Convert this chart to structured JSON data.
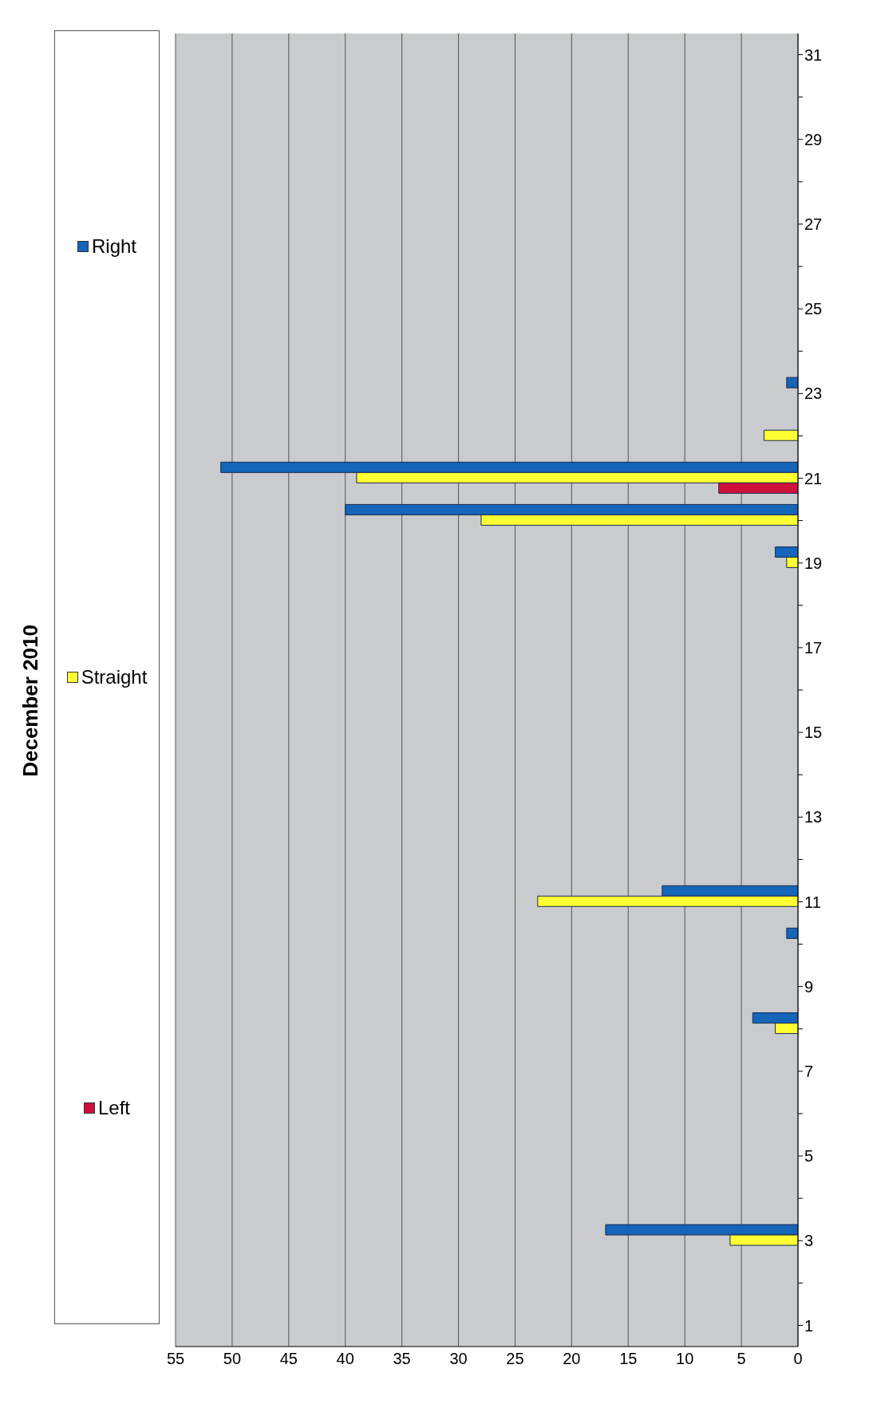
{
  "chart_data": {
    "type": "bar",
    "orientation": "horizontal",
    "title": "December 2010",
    "categories": [
      "31",
      null,
      "29",
      null,
      "27",
      null,
      "25",
      null,
      "23",
      null,
      "21",
      null,
      "19",
      null,
      "17",
      null,
      "15",
      null,
      "13",
      null,
      "11",
      null,
      "9",
      null,
      "7",
      null,
      "5",
      null,
      "3",
      null,
      "1"
    ],
    "series": [
      {
        "name": "Left",
        "color": "#d0103a",
        "values": [
          0,
          0,
          0,
          0,
          0,
          0,
          0,
          0,
          0,
          0,
          7,
          0,
          0,
          0,
          0,
          0,
          0,
          0,
          0,
          0,
          0,
          0,
          0,
          0,
          0,
          0,
          0,
          0,
          0,
          0,
          0
        ]
      },
      {
        "name": "Straight",
        "color": "#ffff33",
        "values": [
          0,
          0,
          0,
          0,
          0,
          0,
          0,
          0,
          0,
          3,
          39,
          28,
          1,
          0,
          0,
          0,
          0,
          0,
          0,
          0,
          23,
          0,
          0,
          2,
          0,
          0,
          0,
          0,
          6,
          0,
          0
        ]
      },
      {
        "name": "Right",
        "color": "#1565b8",
        "values": [
          0,
          0,
          0,
          0,
          0,
          0,
          0,
          0,
          1,
          0,
          51,
          40,
          2,
          0,
          0,
          0,
          0,
          0,
          0,
          0,
          12,
          1,
          0,
          4,
          0,
          0,
          0,
          0,
          17,
          0,
          0
        ]
      }
    ],
    "xlim": [
      55,
      0
    ],
    "xticks": [
      0,
      5,
      10,
      15,
      20,
      25,
      30,
      35,
      40,
      45,
      50,
      55
    ],
    "grid": "x",
    "legend": "left"
  }
}
